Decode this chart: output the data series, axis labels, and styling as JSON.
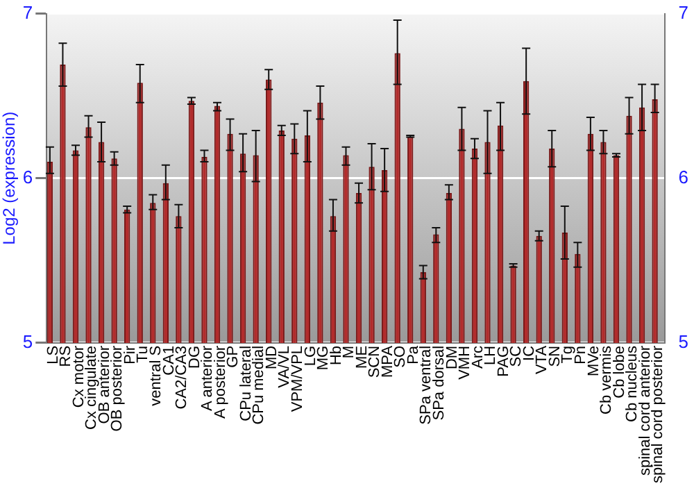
{
  "chart_data": {
    "type": "bar",
    "ylabel": "Log2 (expression)",
    "categories": [
      "LS",
      "RS",
      "Cx motor",
      "Cx cingulate",
      "OB anterior",
      "OB posterior",
      "Pir",
      "Tu",
      "ventral S",
      "CA1",
      "CA2/CA3",
      "DG",
      "A anterior",
      "A posterior",
      "GP",
      "CPu lateral",
      "CPu medial",
      "MD",
      "VA/VL",
      "VPM/VPL",
      "LG",
      "MG",
      "Hb",
      "M",
      "ME",
      "SCN",
      "MPA",
      "SO",
      "Pa",
      "SPa ventral",
      "SPa dorsal",
      "DM",
      "VMH",
      "Arc",
      "LH",
      "PAG",
      "SC",
      "IC",
      "VTA",
      "SN",
      "Tg",
      "Pn",
      "MVe",
      "Cb vermis",
      "Cb lobe",
      "Cb nucleus",
      "spinal cord anterior",
      "spinal cord posterior"
    ],
    "values": [
      6.1,
      6.69,
      6.17,
      6.31,
      6.22,
      6.12,
      5.81,
      6.58,
      5.85,
      5.97,
      5.77,
      6.47,
      6.13,
      6.44,
      6.27,
      6.15,
      6.14,
      6.6,
      6.29,
      6.24,
      6.26,
      6.46,
      5.77,
      6.14,
      5.91,
      6.07,
      6.05,
      6.76,
      6.25,
      5.43,
      5.66,
      5.91,
      6.3,
      6.18,
      6.22,
      6.32,
      5.47,
      6.59,
      5.65,
      6.18,
      5.67,
      5.54,
      6.27,
      6.22,
      6.14,
      6.38,
      6.43,
      6.48
    ],
    "errors": [
      [
        6.03,
        6.19
      ],
      [
        6.56,
        6.82
      ],
      [
        6.14,
        6.2
      ],
      [
        6.25,
        6.38
      ],
      [
        6.1,
        6.34
      ],
      [
        6.08,
        6.16
      ],
      [
        5.79,
        5.83
      ],
      [
        6.46,
        6.69
      ],
      [
        5.81,
        5.9
      ],
      [
        5.87,
        6.08
      ],
      [
        5.7,
        5.84
      ],
      [
        6.45,
        6.49
      ],
      [
        6.1,
        6.17
      ],
      [
        6.41,
        6.46
      ],
      [
        6.17,
        6.36
      ],
      [
        6.04,
        6.27
      ],
      [
        5.98,
        6.29
      ],
      [
        6.54,
        6.66
      ],
      [
        6.26,
        6.32
      ],
      [
        6.15,
        6.33
      ],
      [
        6.1,
        6.41
      ],
      [
        6.36,
        6.56
      ],
      [
        5.68,
        5.87
      ],
      [
        6.08,
        6.19
      ],
      [
        5.85,
        5.97
      ],
      [
        5.93,
        6.21
      ],
      [
        5.92,
        6.18
      ],
      [
        6.57,
        6.96
      ],
      [
        6.25,
        6.26
      ],
      [
        5.39,
        5.47
      ],
      [
        5.61,
        5.7
      ],
      [
        5.87,
        5.96
      ],
      [
        6.17,
        6.43
      ],
      [
        6.12,
        6.24
      ],
      [
        6.03,
        6.41
      ],
      [
        6.17,
        6.46
      ],
      [
        5.46,
        5.48
      ],
      [
        6.39,
        6.79
      ],
      [
        5.62,
        5.68
      ],
      [
        6.07,
        6.29
      ],
      [
        5.51,
        5.83
      ],
      [
        5.46,
        5.61
      ],
      [
        6.17,
        6.37
      ],
      [
        6.15,
        6.29
      ],
      [
        6.13,
        6.15
      ],
      [
        6.27,
        6.49
      ],
      [
        6.29,
        6.57
      ],
      [
        6.4,
        6.57
      ]
    ],
    "color": "#b22c2c",
    "ylim": [
      5,
      7
    ],
    "yticks": [
      5,
      6,
      7
    ],
    "y2lim": [
      5,
      7
    ],
    "y2ticks": [
      5,
      6,
      7
    ],
    "grid": "y"
  }
}
